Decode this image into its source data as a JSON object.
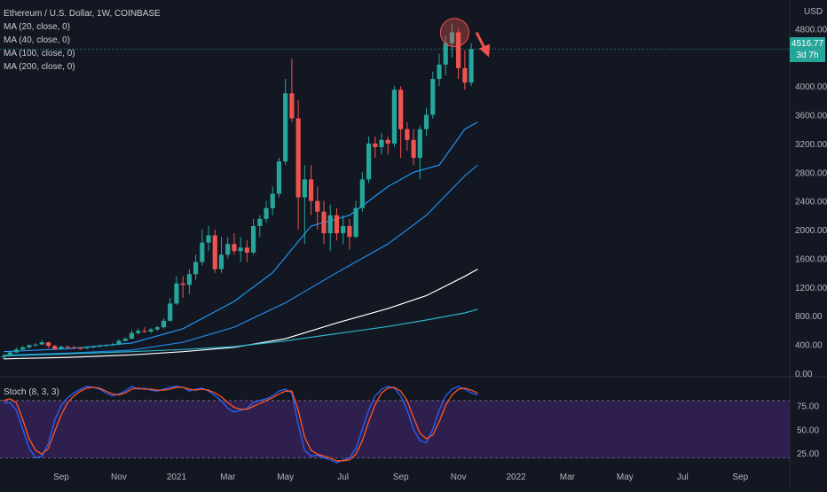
{
  "header": {
    "symbol_line": "Ethereum / U.S. Dollar, 1W, COINBASE",
    "ma_labels": [
      "MA (20, close, 0)",
      "MA (40, close, 0)",
      "MA (100, close, 0)",
      "MA (200, close, 0)"
    ]
  },
  "price_axis": {
    "currency": "USD"
  },
  "last_price": {
    "value": "4516.77",
    "countdown": "3d 7h"
  },
  "stoch": {
    "label": "Stoch (8, 3, 3)"
  },
  "colors": {
    "up": "#26a69a",
    "down": "#ef5350",
    "background": "#131722",
    "stoch_band": "#2e1f4f",
    "ma20": "#2196f3",
    "ma40": "#1e88e5",
    "ma100": "#ffffff",
    "ma200": "#29b6c9",
    "k_line": "#2962ff",
    "d_line": "#ff5722"
  },
  "chart_data": [
    {
      "type": "candlestick",
      "title": "Ethereum / U.S. Dollar, 1W, COINBASE",
      "y_axis": {
        "unit": "USD",
        "ticks": [
          0,
          400,
          800,
          1200,
          1600,
          2000,
          2400,
          2800,
          3200,
          3600,
          4000,
          4800
        ],
        "ylim": [
          -50,
          5200
        ]
      },
      "x_axis": {
        "tick_labels": [
          "Sep",
          "Nov",
          "2021",
          "Mar",
          "May",
          "Jul",
          "Sep",
          "Nov",
          "2022",
          "Mar",
          "May",
          "Jul",
          "Sep"
        ],
        "tick_week_index": [
          9,
          18,
          27,
          35,
          44,
          53,
          62,
          71,
          80,
          88,
          97,
          106,
          115
        ]
      },
      "candles": [
        {
          "o": 220,
          "c": 235,
          "h": 265,
          "l": 205
        },
        {
          "o": 235,
          "c": 290,
          "h": 310,
          "l": 230
        },
        {
          "o": 290,
          "c": 330,
          "h": 355,
          "l": 280
        },
        {
          "o": 330,
          "c": 360,
          "h": 380,
          "l": 320
        },
        {
          "o": 360,
          "c": 390,
          "h": 400,
          "l": 345
        },
        {
          "o": 390,
          "c": 400,
          "h": 420,
          "l": 370
        },
        {
          "o": 400,
          "c": 430,
          "h": 460,
          "l": 395
        },
        {
          "o": 430,
          "c": 380,
          "h": 440,
          "l": 350
        },
        {
          "o": 380,
          "c": 340,
          "h": 395,
          "l": 320
        },
        {
          "o": 340,
          "c": 370,
          "h": 385,
          "l": 330
        },
        {
          "o": 370,
          "c": 360,
          "h": 385,
          "l": 340
        },
        {
          "o": 360,
          "c": 350,
          "h": 380,
          "l": 335
        },
        {
          "o": 350,
          "c": 345,
          "h": 365,
          "l": 330
        },
        {
          "o": 345,
          "c": 360,
          "h": 375,
          "l": 335
        },
        {
          "o": 360,
          "c": 370,
          "h": 385,
          "l": 350
        },
        {
          "o": 370,
          "c": 380,
          "h": 400,
          "l": 360
        },
        {
          "o": 380,
          "c": 390,
          "h": 405,
          "l": 370
        },
        {
          "o": 390,
          "c": 400,
          "h": 420,
          "l": 380
        },
        {
          "o": 400,
          "c": 450,
          "h": 470,
          "l": 390
        },
        {
          "o": 450,
          "c": 480,
          "h": 500,
          "l": 440
        },
        {
          "o": 480,
          "c": 560,
          "h": 600,
          "l": 470
        },
        {
          "o": 560,
          "c": 590,
          "h": 620,
          "l": 540
        },
        {
          "o": 590,
          "c": 580,
          "h": 640,
          "l": 560
        },
        {
          "o": 580,
          "c": 610,
          "h": 630,
          "l": 560
        },
        {
          "o": 610,
          "c": 640,
          "h": 660,
          "l": 590
        },
        {
          "o": 640,
          "c": 730,
          "h": 760,
          "l": 620
        },
        {
          "o": 730,
          "c": 970,
          "h": 1050,
          "l": 720
        },
        {
          "o": 970,
          "c": 1250,
          "h": 1350,
          "l": 950
        },
        {
          "o": 1250,
          "c": 1230,
          "h": 1350,
          "l": 1050
        },
        {
          "o": 1230,
          "c": 1380,
          "h": 1450,
          "l": 1100
        },
        {
          "o": 1380,
          "c": 1550,
          "h": 1650,
          "l": 1300
        },
        {
          "o": 1550,
          "c": 1820,
          "h": 2000,
          "l": 1500
        },
        {
          "o": 1820,
          "c": 1920,
          "h": 2050,
          "l": 1700
        },
        {
          "o": 1920,
          "c": 1450,
          "h": 2000,
          "l": 1400
        },
        {
          "o": 1450,
          "c": 1650,
          "h": 1900,
          "l": 1400
        },
        {
          "o": 1650,
          "c": 1800,
          "h": 1900,
          "l": 1600
        },
        {
          "o": 1800,
          "c": 1700,
          "h": 1950,
          "l": 1650
        },
        {
          "o": 1700,
          "c": 1750,
          "h": 1900,
          "l": 1550
        },
        {
          "o": 1750,
          "c": 1680,
          "h": 1850,
          "l": 1550
        },
        {
          "o": 1680,
          "c": 2050,
          "h": 2150,
          "l": 1650
        },
        {
          "o": 2050,
          "c": 2150,
          "h": 2200,
          "l": 1900
        },
        {
          "o": 2150,
          "c": 2300,
          "h": 2400,
          "l": 2100
        },
        {
          "o": 2300,
          "c": 2500,
          "h": 2600,
          "l": 2200
        },
        {
          "o": 2500,
          "c": 2950,
          "h": 3000,
          "l": 2450
        },
        {
          "o": 2950,
          "c": 3900,
          "h": 4100,
          "l": 2900
        },
        {
          "o": 3900,
          "c": 3550,
          "h": 4380,
          "l": 3500
        },
        {
          "o": 3550,
          "c": 2450,
          "h": 3800,
          "l": 2000
        },
        {
          "o": 2450,
          "c": 2700,
          "h": 2900,
          "l": 1800
        },
        {
          "o": 2700,
          "c": 2400,
          "h": 2900,
          "l": 2200
        },
        {
          "o": 2400,
          "c": 2250,
          "h": 2600,
          "l": 2000
        },
        {
          "o": 2250,
          "c": 1950,
          "h": 2400,
          "l": 1800
        },
        {
          "o": 1950,
          "c": 2200,
          "h": 2350,
          "l": 1700
        },
        {
          "o": 2200,
          "c": 1950,
          "h": 2300,
          "l": 1850
        },
        {
          "o": 1950,
          "c": 2050,
          "h": 2200,
          "l": 1800
        },
        {
          "o": 2050,
          "c": 1900,
          "h": 2150,
          "l": 1720
        },
        {
          "o": 1900,
          "c": 2300,
          "h": 2400,
          "l": 1880
        },
        {
          "o": 2300,
          "c": 2700,
          "h": 2800,
          "l": 2250
        },
        {
          "o": 2700,
          "c": 3200,
          "h": 3300,
          "l": 2650
        },
        {
          "o": 3200,
          "c": 3150,
          "h": 3300,
          "l": 3000
        },
        {
          "o": 3150,
          "c": 3250,
          "h": 3350,
          "l": 3050
        },
        {
          "o": 3250,
          "c": 3200,
          "h": 3300,
          "l": 3050
        },
        {
          "o": 3200,
          "c": 3950,
          "h": 4000,
          "l": 3150
        },
        {
          "o": 3950,
          "c": 3400,
          "h": 4000,
          "l": 3000
        },
        {
          "o": 3400,
          "c": 3250,
          "h": 3500,
          "l": 3100
        },
        {
          "o": 3250,
          "c": 3000,
          "h": 3400,
          "l": 2900
        },
        {
          "o": 3000,
          "c": 3400,
          "h": 3450,
          "l": 2700
        },
        {
          "o": 3400,
          "c": 3600,
          "h": 3700,
          "l": 3300
        },
        {
          "o": 3600,
          "c": 4100,
          "h": 4200,
          "l": 3550
        },
        {
          "o": 4100,
          "c": 4300,
          "h": 4450,
          "l": 4000
        },
        {
          "o": 4300,
          "c": 4600,
          "h": 4700,
          "l": 4150
        },
        {
          "o": 4600,
          "c": 4750,
          "h": 4870,
          "l": 4400
        },
        {
          "o": 4750,
          "c": 4250,
          "h": 4800,
          "l": 4100
        },
        {
          "o": 4250,
          "c": 4050,
          "h": 4500,
          "l": 3950
        },
        {
          "o": 4050,
          "c": 4516.77,
          "h": 4600,
          "l": 4000
        }
      ],
      "moving_averages": [
        {
          "name": "MA (20, close, 0)",
          "color": "#2196f3",
          "points": [
            [
              0,
              300
            ],
            [
              10,
              340
            ],
            [
              20,
              420
            ],
            [
              28,
              620
            ],
            [
              36,
              1000
            ],
            [
              42,
              1400
            ],
            [
              48,
              2050
            ],
            [
              54,
              2200
            ],
            [
              60,
              2600
            ],
            [
              64,
              2800
            ],
            [
              68,
              2900
            ],
            [
              72,
              3400
            ],
            [
              74,
              3500
            ]
          ]
        },
        {
          "name": "MA (40, close, 0)",
          "color": "#1e88e5",
          "points": [
            [
              0,
              250
            ],
            [
              10,
              280
            ],
            [
              20,
              320
            ],
            [
              28,
              430
            ],
            [
              36,
              640
            ],
            [
              44,
              980
            ],
            [
              52,
              1400
            ],
            [
              60,
              1800
            ],
            [
              66,
              2200
            ],
            [
              72,
              2750
            ],
            [
              74,
              2900
            ]
          ]
        },
        {
          "name": "MA (100, close, 0)",
          "color": "#ffffff",
          "points": [
            [
              0,
              200
            ],
            [
              10,
              220
            ],
            [
              20,
              255
            ],
            [
              28,
              300
            ],
            [
              36,
              360
            ],
            [
              44,
              480
            ],
            [
              52,
              700
            ],
            [
              60,
              900
            ],
            [
              66,
              1080
            ],
            [
              72,
              1350
            ],
            [
              74,
              1450
            ]
          ]
        },
        {
          "name": "MA (200, close, 0)",
          "color": "#29b6c9",
          "points": [
            [
              0,
              240
            ],
            [
              10,
              270
            ],
            [
              20,
              300
            ],
            [
              28,
              330
            ],
            [
              36,
              370
            ],
            [
              44,
              450
            ],
            [
              52,
              550
            ],
            [
              60,
              650
            ],
            [
              66,
              740
            ],
            [
              72,
              840
            ],
            [
              74,
              890
            ]
          ]
        }
      ]
    },
    {
      "type": "line",
      "title": "Stoch (8, 3, 3)",
      "y_axis": {
        "ticks": [
          25,
          50,
          75
        ],
        "ylim": [
          15,
          105
        ],
        "band": [
          20,
          80
        ]
      },
      "series": [
        {
          "values": [
            78,
            78,
            70,
            50,
            30,
            20,
            22,
            35,
            60,
            75,
            83,
            88,
            92,
            95,
            94,
            92,
            88,
            85,
            87,
            90,
            95,
            92,
            93,
            91,
            90,
            92,
            94,
            95,
            94,
            90,
            92,
            93,
            90,
            85,
            80,
            72,
            68,
            70,
            72,
            78,
            80,
            82,
            85,
            90,
            92,
            88,
            55,
            28,
            22,
            23,
            20,
            18,
            15,
            18,
            20,
            30,
            50,
            70,
            85,
            92,
            95,
            93,
            85,
            70,
            50,
            38,
            36,
            50,
            70,
            85,
            92,
            95,
            92,
            88,
            86
          ]
        },
        {
          "values": [
            80,
            82,
            78,
            60,
            40,
            28,
            24,
            30,
            48,
            65,
            78,
            85,
            90,
            93,
            94,
            93,
            90,
            87,
            86,
            88,
            92,
            93,
            92,
            92,
            91,
            91,
            92,
            94,
            94,
            92,
            91,
            92,
            91,
            88,
            84,
            78,
            73,
            71,
            71,
            74,
            77,
            80,
            83,
            87,
            90,
            90,
            70,
            42,
            28,
            24,
            22,
            20,
            17,
            17,
            18,
            24,
            38,
            58,
            76,
            88,
            93,
            94,
            90,
            80,
            62,
            46,
            40,
            44,
            58,
            75,
            86,
            92,
            93,
            91,
            88
          ]
        }
      ]
    }
  ]
}
